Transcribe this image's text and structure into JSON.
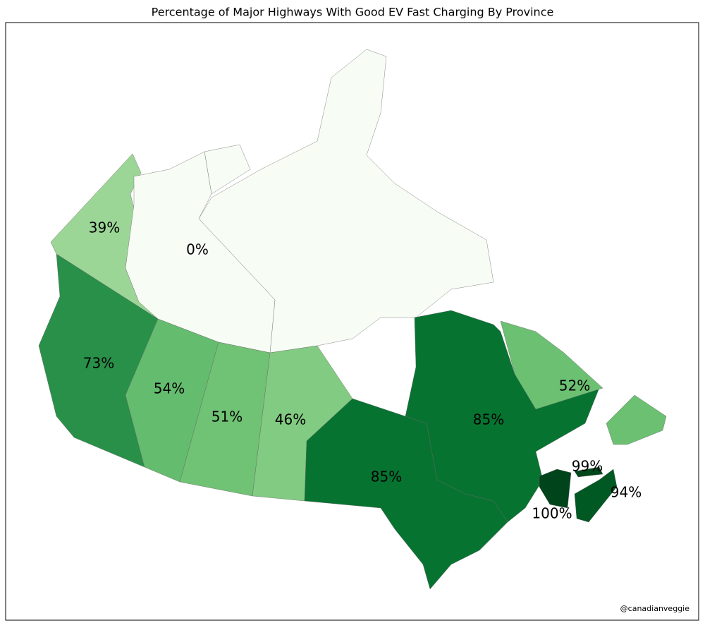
{
  "chart_data": {
    "type": "choropleth",
    "title": "Percentage of Major Highways With Good EV Fast Charging By Province",
    "values": [
      39,
      0,
      73,
      54,
      51,
      46,
      85,
      85,
      52,
      99,
      94,
      100
    ],
    "value_labels": [
      "39%",
      "0%",
      "73%",
      "54%",
      "51%",
      "46%",
      "85%",
      "85%",
      "52%",
      "99%",
      "94%",
      "100%"
    ],
    "colormap": "Greens",
    "credit": "@canadianveggie"
  }
}
